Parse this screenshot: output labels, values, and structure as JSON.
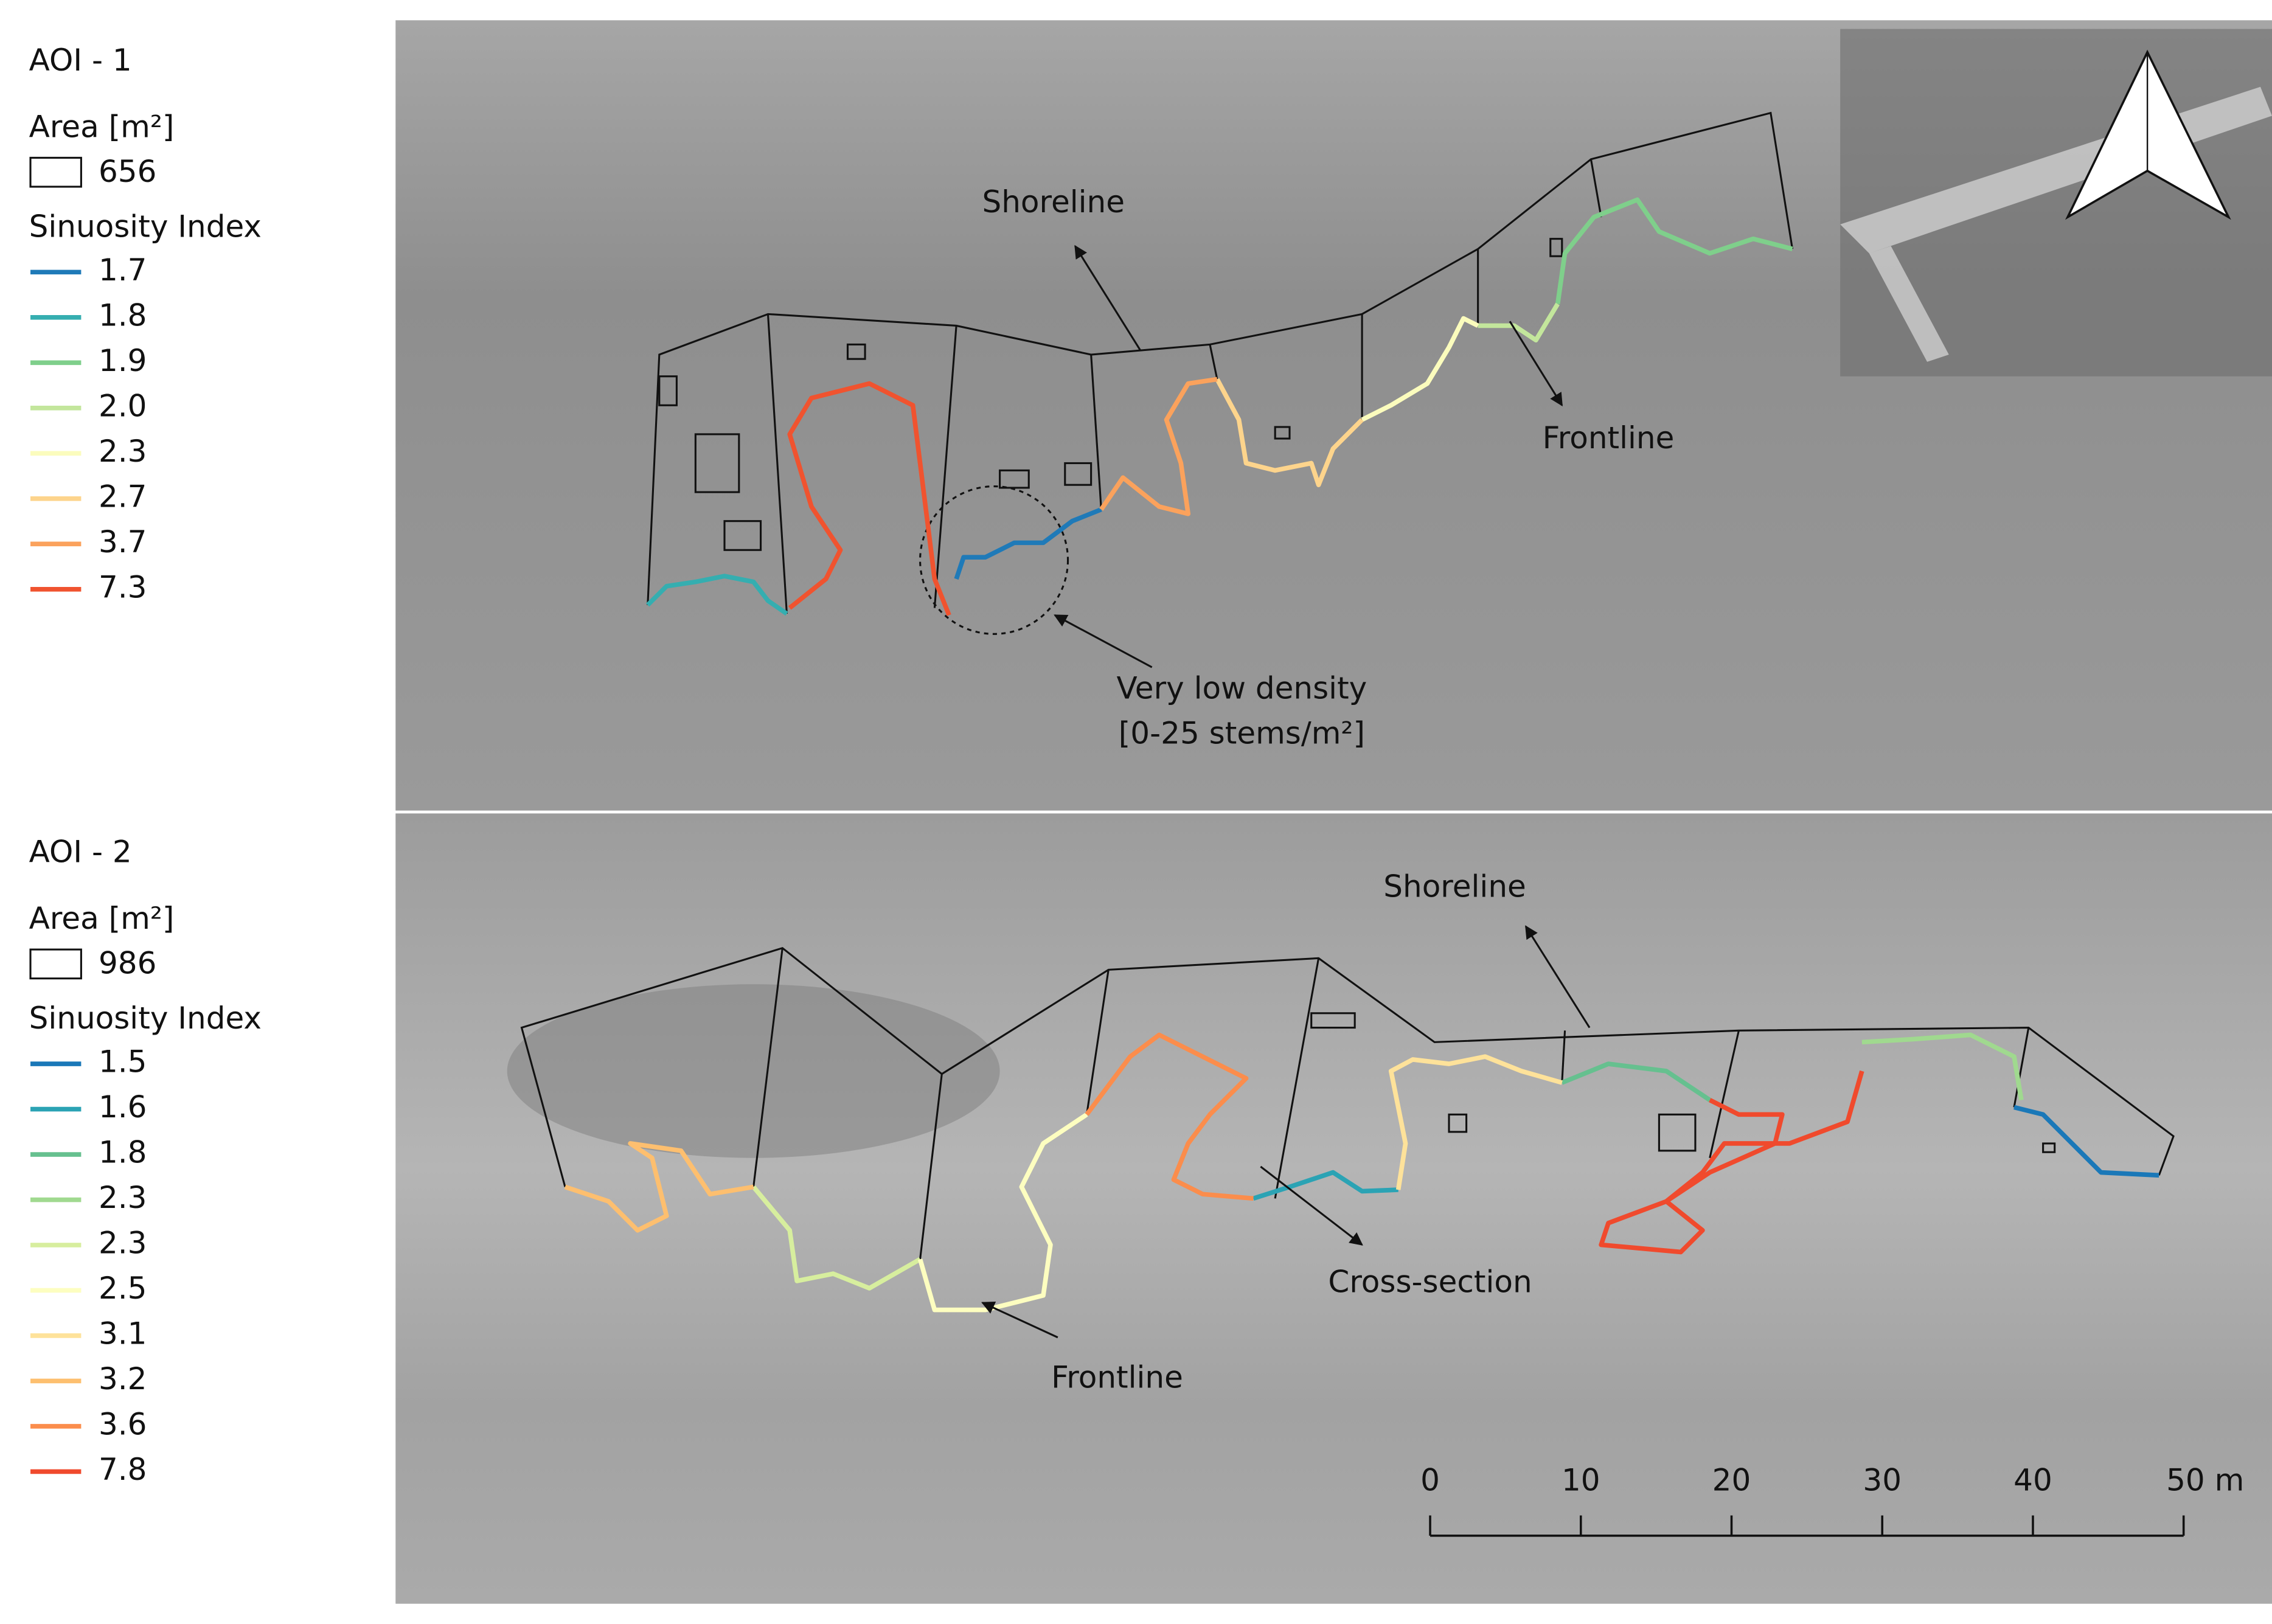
{
  "panels": [
    {
      "title": "AOI - 1",
      "area_title": "Area [m²]",
      "area_value": 656,
      "legend_title": "Sinuosity Index",
      "classes": [
        {
          "label": "1.7",
          "color": "#1f7ab8"
        },
        {
          "label": "1.8",
          "color": "#35aeb0"
        },
        {
          "label": "1.9",
          "color": "#7fcf8b"
        },
        {
          "label": "2.0",
          "color": "#c3e69c"
        },
        {
          "label": "2.3",
          "color": "#fbfcbd"
        },
        {
          "label": "2.7",
          "color": "#fdd48c"
        },
        {
          "label": "3.7",
          "color": "#fba25c"
        },
        {
          "label": "7.3",
          "color": "#f0532f"
        }
      ],
      "annotations": [
        "Shoreline",
        "Frontline",
        "Very low density",
        "[0-25 stems/m²]"
      ]
    },
    {
      "title": "AOI - 2",
      "area_title": "Area [m²]",
      "area_value": 986,
      "legend_title": "Sinuosity Index",
      "classes": [
        {
          "label": "1.5",
          "color": "#1a78b8"
        },
        {
          "label": "1.6",
          "color": "#2ba3b4"
        },
        {
          "label": "1.8",
          "color": "#66c08f"
        },
        {
          "label": "2.3",
          "color": "#a0d98f"
        },
        {
          "label": "2.3",
          "color": "#d7ee9e"
        },
        {
          "label": "2.5",
          "color": "#fdfec0"
        },
        {
          "label": "3.1",
          "color": "#fee29a"
        },
        {
          "label": "3.2",
          "color": "#fdbf6f"
        },
        {
          "label": "3.6",
          "color": "#fb8d4c"
        },
        {
          "label": "7.8",
          "color": "#f04a2d"
        }
      ],
      "annotations": [
        "Shoreline",
        "Cross-section",
        "Frontline"
      ]
    }
  ],
  "scale_bar": {
    "ticks": [
      0,
      10,
      20,
      30,
      40,
      {
        "value": 50,
        "label": "50 m"
      }
    ]
  }
}
